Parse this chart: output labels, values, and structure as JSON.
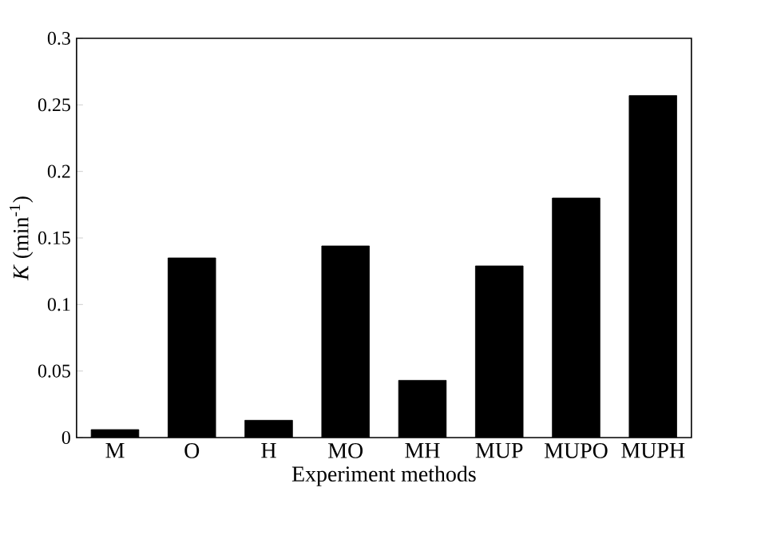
{
  "chart_data": {
    "type": "bar",
    "xlabel": "Experiment methods",
    "ylabel": "*K* (min$^{-1}$)",
    "categories": [
      "M",
      "O",
      "H",
      "MO",
      "MH",
      "MUP",
      "MUPO",
      "MUPH"
    ],
    "values": [
      0.006,
      0.135,
      0.013,
      0.144,
      0.043,
      0.129,
      0.18,
      0.257
    ],
    "color": "#000000",
    "ylim": [
      0,
      0.3
    ],
    "yticks": [
      0,
      0.05,
      0.1,
      0.15,
      0.2,
      0.25,
      0.3
    ],
    "grid": false
  }
}
